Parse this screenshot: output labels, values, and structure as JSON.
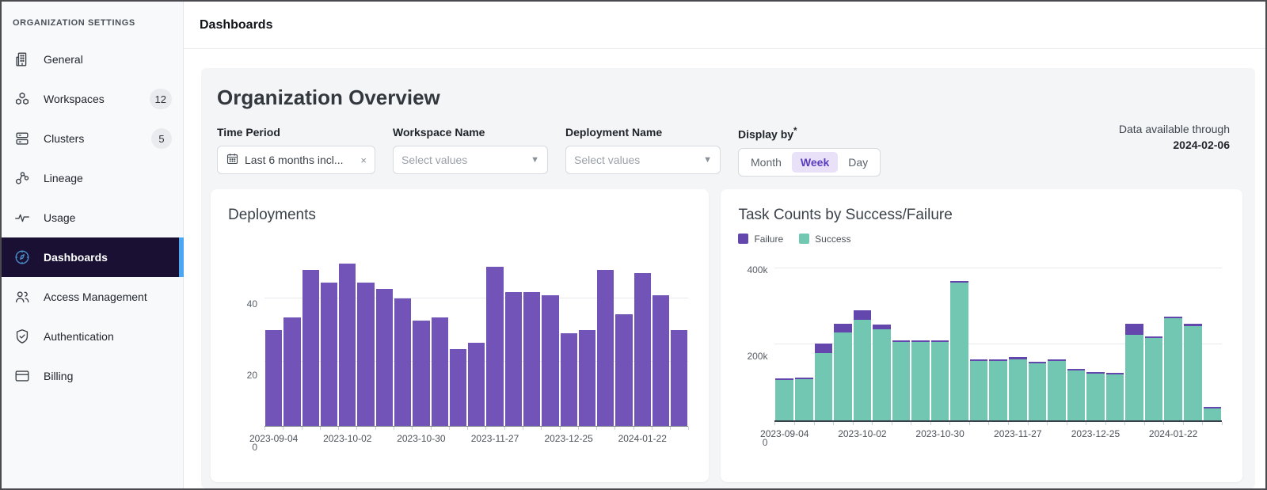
{
  "sidebar": {
    "header": "ORGANIZATION SETTINGS",
    "items": [
      {
        "label": "General",
        "icon": "building-icon"
      },
      {
        "label": "Workspaces",
        "icon": "cubes-icon",
        "badge": "12"
      },
      {
        "label": "Clusters",
        "icon": "stack-icon",
        "badge": "5"
      },
      {
        "label": "Lineage",
        "icon": "nodes-icon"
      },
      {
        "label": "Usage",
        "icon": "pulse-icon"
      },
      {
        "label": "Dashboards",
        "icon": "compass-icon",
        "selected": true
      },
      {
        "label": "Access Management",
        "icon": "people-icon"
      },
      {
        "label": "Authentication",
        "icon": "shield-icon"
      },
      {
        "label": "Billing",
        "icon": "card-icon"
      }
    ]
  },
  "topbar": {
    "title": "Dashboards"
  },
  "overview": {
    "title": "Organization Overview",
    "filters": {
      "time_period": {
        "label": "Time Period",
        "value": "Last 6 months incl...",
        "icon": "calendar-icon",
        "clear": "×"
      },
      "workspace": {
        "label": "Workspace Name",
        "placeholder": "Select values",
        "caret": "▼"
      },
      "deployment": {
        "label": "Deployment Name",
        "placeholder": "Select values",
        "caret": "▼"
      },
      "display_by": {
        "label": "Display by",
        "required_mark": "*",
        "options": [
          "Month",
          "Week",
          "Day"
        ],
        "selected": "Week"
      }
    },
    "data_available": {
      "line1": "Data available through",
      "date": "2024-02-06"
    }
  },
  "colors": {
    "deployment_bar": "#7254b8",
    "failure": "#6347ad",
    "success": "#72c7b2",
    "selected_row_bg": "#191034",
    "selected_row_accent": "#4da6f2",
    "week_active_bg": "#e8e1f8",
    "week_active_text": "#5b3bbf"
  },
  "chart_data": [
    {
      "type": "bar",
      "title": "Deployments",
      "ylim": [
        0,
        55
      ],
      "grid": true,
      "yticks": [
        {
          "value": 0,
          "label": "0"
        },
        {
          "value": 20,
          "label": "20"
        },
        {
          "value": 40,
          "label": "40"
        }
      ],
      "xticks": [
        {
          "index": 0,
          "label": "2023-09-04"
        },
        {
          "index": 4,
          "label": "2023-10-02"
        },
        {
          "index": 8,
          "label": "2023-10-30"
        },
        {
          "index": 12,
          "label": "2023-11-27"
        },
        {
          "index": 16,
          "label": "2023-12-25"
        },
        {
          "index": 20,
          "label": "2024-01-22"
        }
      ],
      "series": [
        {
          "name": "Deployments",
          "color": "#7254b8",
          "values": [
            30,
            34,
            49,
            45,
            51,
            45,
            43,
            40,
            33,
            34,
            24,
            26,
            50,
            42,
            42,
            41,
            29,
            30,
            49,
            35,
            48,
            41,
            30
          ]
        }
      ]
    },
    {
      "type": "bar",
      "stacked": true,
      "title": "Task Counts by Success/Failure",
      "legend_position": "top-left",
      "ylim": [
        0,
        430000
      ],
      "grid": true,
      "yticks": [
        {
          "value": 0,
          "label": "0"
        },
        {
          "value": 200000,
          "label": "200k"
        },
        {
          "value": 400000,
          "label": "400k"
        }
      ],
      "xticks": [
        {
          "index": 0,
          "label": "2023-09-04"
        },
        {
          "index": 4,
          "label": "2023-10-02"
        },
        {
          "index": 8,
          "label": "2023-10-30"
        },
        {
          "index": 12,
          "label": "2023-11-27"
        },
        {
          "index": 16,
          "label": "2023-12-25"
        },
        {
          "index": 20,
          "label": "2024-01-22"
        }
      ],
      "series": [
        {
          "name": "Failure",
          "color": "#6347ad",
          "values": [
            3000,
            3000,
            25000,
            21000,
            25000,
            12000,
            4000,
            4000,
            4000,
            3000,
            3000,
            3000,
            7000,
            3000,
            3000,
            3000,
            3000,
            3000,
            28000,
            4000,
            5000,
            5000,
            3000
          ]
        },
        {
          "name": "Success",
          "color": "#72c7b2",
          "values": [
            106000,
            107000,
            177000,
            232000,
            264000,
            240000,
            207000,
            207000,
            207000,
            363000,
            156000,
            156000,
            160000,
            150000,
            156000,
            131000,
            122000,
            120000,
            225000,
            217000,
            268000,
            248000,
            30000
          ]
        }
      ]
    }
  ]
}
